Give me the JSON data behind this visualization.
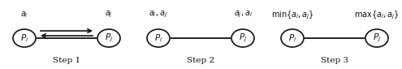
{
  "steps": [
    "Step 1",
    "Step 2",
    "Step 3"
  ],
  "node_labels_i": [
    "$P_i$",
    "$P_i$",
    "$P_i$"
  ],
  "node_labels_j": [
    "$P_j$",
    "$P_j$",
    "$P_j$"
  ],
  "top_labels_left": [
    "$a_i$",
    "$a_i, a_j$",
    "$\\min\\{a_i, a_j\\}$"
  ],
  "top_labels_right": [
    "$a_j$",
    "$a_j, a_i$",
    "$\\max\\{a_i, a_j\\}$"
  ],
  "bg_color": "#ffffff",
  "node_color": "#ffffff",
  "edge_color": "#111111",
  "text_color": "#111111",
  "figwidth": 4.95,
  "figheight": 0.85,
  "dpi": 100
}
